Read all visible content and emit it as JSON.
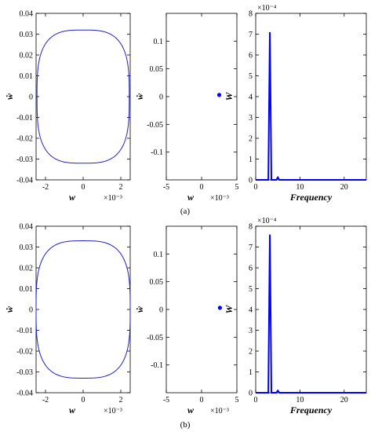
{
  "figure": {
    "caption_a": "(a)",
    "caption_b": "(b)"
  },
  "chart_data": [
    {
      "panel": "a-phase",
      "type": "line",
      "xlabel": "w",
      "ylabel": "ẇ",
      "x_scale_label": "×10⁻³",
      "xlim": [
        -2.5,
        2.5
      ],
      "ylim": [
        -0.04,
        0.04
      ],
      "xticks": [
        -2,
        0,
        2
      ],
      "yticks": [
        -0.04,
        -0.03,
        -0.02,
        -0.01,
        0,
        0.01,
        0.02,
        0.03,
        0.04
      ],
      "series": [
        {
          "shape": "closed-orbit",
          "x_amplitude": 2.45,
          "y_amplitude": 0.032,
          "color": "#2020c8"
        }
      ]
    },
    {
      "panel": "a-poincare",
      "type": "scatter",
      "xlabel": "w",
      "ylabel": "ẇ",
      "x_scale_label": "×10⁻³",
      "xlim": [
        -5,
        5
      ],
      "ylim": [
        -0.15,
        0.15
      ],
      "xticks": [
        -5,
        0,
        5
      ],
      "yticks": [
        -0.1,
        -0.05,
        0,
        0.05,
        0.1
      ],
      "series": [
        {
          "x": [
            2.5
          ],
          "y": [
            0.003
          ],
          "color": "#0000ff"
        }
      ]
    },
    {
      "panel": "a-spectrum",
      "type": "line",
      "xlabel": "Frequency",
      "ylabel": "W",
      "y_scale_label": "×10⁻⁴",
      "xlim": [
        0,
        25
      ],
      "ylim": [
        0,
        8
      ],
      "xticks": [
        0,
        10,
        20
      ],
      "yticks": [
        0,
        1,
        2,
        3,
        4,
        5,
        6,
        7,
        8
      ],
      "series": [
        {
          "peaks": [
            {
              "x": 3.2,
              "y": 7.1
            },
            {
              "x": 5.0,
              "y": 0.12
            }
          ],
          "color": "#0000ff"
        }
      ]
    },
    {
      "panel": "b-phase",
      "type": "line",
      "xlabel": "w",
      "ylabel": "ẇ",
      "x_scale_label": "×10⁻³",
      "xlim": [
        -2.5,
        2.5
      ],
      "ylim": [
        -0.04,
        0.04
      ],
      "xticks": [
        -2,
        0,
        2
      ],
      "yticks": [
        -0.04,
        -0.03,
        -0.02,
        -0.01,
        0,
        0.01,
        0.02,
        0.03,
        0.04
      ],
      "series": [
        {
          "shape": "closed-orbit",
          "x_amplitude": 2.5,
          "y_amplitude": 0.033,
          "color": "#2020c8"
        }
      ]
    },
    {
      "panel": "b-poincare",
      "type": "scatter",
      "xlabel": "w",
      "ylabel": "ẇ",
      "x_scale_label": "×10⁻³",
      "xlim": [
        -5,
        5
      ],
      "ylim": [
        -0.15,
        0.15
      ],
      "xticks": [
        -5,
        0,
        5
      ],
      "yticks": [
        -0.1,
        -0.05,
        0,
        0.05,
        0.1
      ],
      "series": [
        {
          "x": [
            2.6
          ],
          "y": [
            0.003
          ],
          "color": "#0000ff"
        }
      ]
    },
    {
      "panel": "b-spectrum",
      "type": "line",
      "xlabel": "Frequency",
      "ylabel": "W",
      "y_scale_label": "×10⁻⁴",
      "xlim": [
        0,
        25
      ],
      "ylim": [
        0,
        8
      ],
      "xticks": [
        0,
        10,
        20
      ],
      "yticks": [
        0,
        1,
        2,
        3,
        4,
        5,
        6,
        7,
        8
      ],
      "series": [
        {
          "peaks": [
            {
              "x": 3.2,
              "y": 7.6
            },
            {
              "x": 5.0,
              "y": 0.1
            }
          ],
          "color": "#0000ff"
        }
      ]
    }
  ]
}
